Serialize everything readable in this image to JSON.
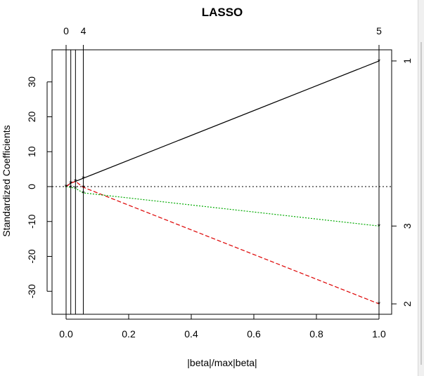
{
  "chart_data": {
    "type": "line",
    "title": "LASSO",
    "xlabel": "|beta|/max|beta|",
    "ylabel": "Standardized Coefficients",
    "xlim": [
      0,
      1.0
    ],
    "ylim": [
      -35,
      38
    ],
    "x_ticks": [
      0.0,
      0.2,
      0.4,
      0.6,
      0.8,
      1.0
    ],
    "x_tick_labels": [
      "0.0",
      "0.2",
      "0.4",
      "0.6",
      "0.8",
      "1.0"
    ],
    "y_ticks": [
      -30,
      -20,
      -10,
      0,
      10,
      20,
      30
    ],
    "y_tick_labels": [
      "-30",
      "-20",
      "-10",
      "0",
      "10",
      "20",
      "30"
    ],
    "step_positions": [
      0.0,
      0.015,
      0.03,
      0.055,
      1.0
    ],
    "top_axis_labels": [
      {
        "x": 0.0,
        "label": "0"
      },
      {
        "x": 0.055,
        "label": "4"
      },
      {
        "x": 1.0,
        "label": "5"
      }
    ],
    "right_axis_labels": [
      {
        "y": 36,
        "label": "1"
      },
      {
        "y": -11.3,
        "label": "3"
      },
      {
        "y": -33.6,
        "label": "2"
      }
    ],
    "zero_line": true,
    "series": [
      {
        "color": "#000000",
        "dash": "solid",
        "x": [
          0.0,
          0.015,
          0.03,
          0.055,
          1.0
        ],
        "values": [
          0.0,
          1.0,
          1.5,
          2.4,
          36.0
        ]
      },
      {
        "color": "#dd0000",
        "dash": "dashed",
        "x": [
          0.0,
          0.015,
          0.03,
          0.055,
          1.0
        ],
        "values": [
          0.0,
          1.0,
          1.5,
          -0.2,
          -33.6
        ]
      },
      {
        "color": "#00aa00",
        "dash": "dotted",
        "x": [
          0.0,
          0.015,
          0.03,
          0.055,
          1.0
        ],
        "values": [
          0.0,
          -0.2,
          -0.5,
          -1.8,
          -11.3
        ]
      }
    ]
  }
}
